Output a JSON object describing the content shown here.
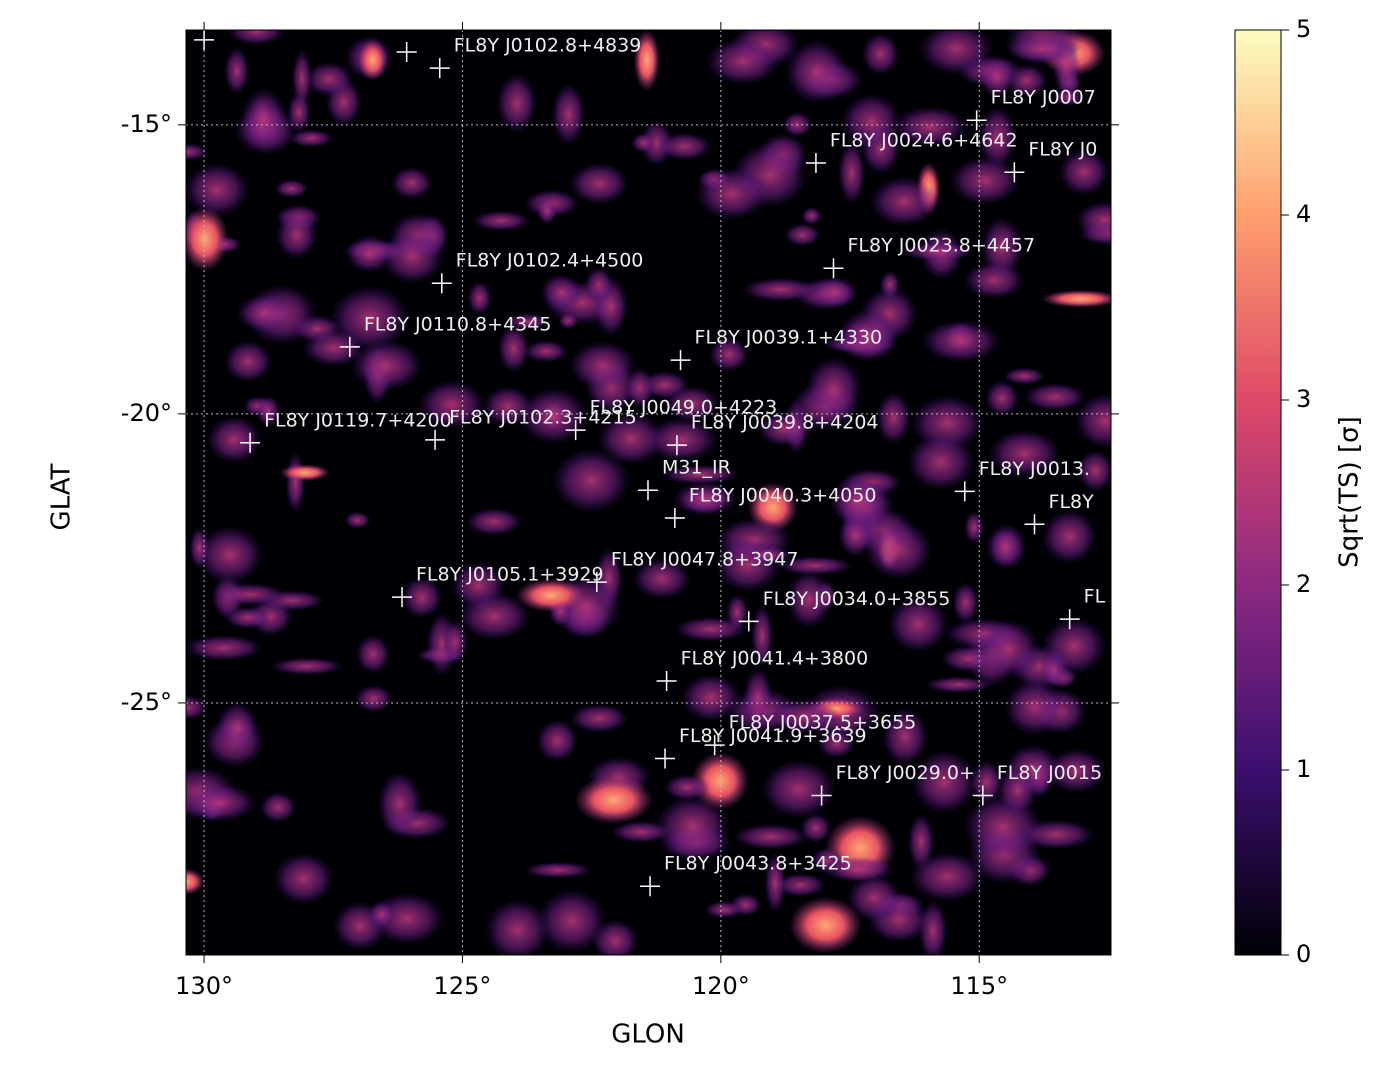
{
  "chart_data": {
    "type": "skymap",
    "xlabel": "GLON",
    "ylabel": "GLAT",
    "xlim": [
      130.35,
      112.45
    ],
    "ylim": [
      -29.36,
      -13.36
    ],
    "xticks": [
      {
        "value": 130,
        "label": "130°"
      },
      {
        "value": 125,
        "label": "125°"
      },
      {
        "value": 120,
        "label": "120°"
      },
      {
        "value": 115,
        "label": "115°"
      }
    ],
    "yticks": [
      {
        "value": -15,
        "label": "-15°"
      },
      {
        "value": -20,
        "label": "-20°"
      },
      {
        "value": -25,
        "label": "-25°"
      }
    ],
    "grid": true,
    "colorbar": {
      "label": "Sqrt(TS) [σ]",
      "lim": [
        0,
        5
      ],
      "ticks": [
        0,
        1,
        2,
        3,
        4,
        5
      ]
    },
    "sources": [
      {
        "glon": 130.0,
        "glat": -13.53
      },
      {
        "glon": 126.08,
        "glat": -13.74
      },
      {
        "name": "FL8Y J0102.8+4839",
        "glon": 125.44,
        "glat": -14.02
      },
      {
        "name": "FL8Y J0007",
        "glon": 115.05,
        "glat": -14.92
      },
      {
        "name": "FL8Y J0024.6+4642",
        "glon": 118.16,
        "glat": -15.66
      },
      {
        "name": "FL8Y J0",
        "glon": 114.32,
        "glat": -15.82
      },
      {
        "name": "FL8Y J0102.4+4500",
        "glon": 125.4,
        "glat": -17.74
      },
      {
        "name": "FL8Y J0023.8+4457",
        "glon": 117.82,
        "glat": -17.48
      },
      {
        "name": "FL8Y J0110.8+4345",
        "glon": 127.18,
        "glat": -18.84
      },
      {
        "name": "FL8Y J0039.1+4330",
        "glon": 120.78,
        "glat": -19.07
      },
      {
        "name": "FL8Y J0119.7+4200",
        "glon": 129.11,
        "glat": -20.5
      },
      {
        "name": "FL8Y J0102.3+4215",
        "glon": 125.53,
        "glat": -20.45
      },
      {
        "name": "FL8Y J0049.0+4223",
        "glon": 122.81,
        "glat": -20.28
      },
      {
        "name": "FL8Y J0039.8+4204",
        "glon": 120.85,
        "glat": -20.54
      },
      {
        "name": "M31_IR",
        "glon": 121.41,
        "glat": -21.32
      },
      {
        "name": "FL8Y J0040.3+4050",
        "glon": 120.89,
        "glat": -21.8
      },
      {
        "name": "FL8Y J0013.",
        "glon": 115.28,
        "glat": -21.34
      },
      {
        "name": "FL8Y",
        "glon": 113.93,
        "glat": -21.91
      },
      {
        "name": "FL8Y J0047.8+3947",
        "glon": 122.4,
        "glat": -22.91
      },
      {
        "name": "FL8Y J0105.1+3929",
        "glon": 126.17,
        "glat": -23.17
      },
      {
        "name": "FL8Y J0034.0+3855",
        "glon": 119.46,
        "glat": -23.59
      },
      {
        "name": "FL",
        "glon": 113.25,
        "glat": -23.55
      },
      {
        "name": "FL8Y J0041.4+3800",
        "glon": 121.05,
        "glat": -24.62
      },
      {
        "name": "FL8Y J0037.5+3655",
        "glon": 120.12,
        "glat": -25.73
      },
      {
        "name": "FL8Y J0041.9+3639",
        "glon": 121.08,
        "glat": -25.96
      },
      {
        "name": "FL8Y J0029.0+",
        "glon": 118.05,
        "glat": -26.6
      },
      {
        "name": "FL8Y J0015",
        "glon": 114.93,
        "glat": -26.6
      },
      {
        "name": "FL8Y J0043.8+3425",
        "glon": 121.37,
        "glat": -28.17
      }
    ]
  }
}
